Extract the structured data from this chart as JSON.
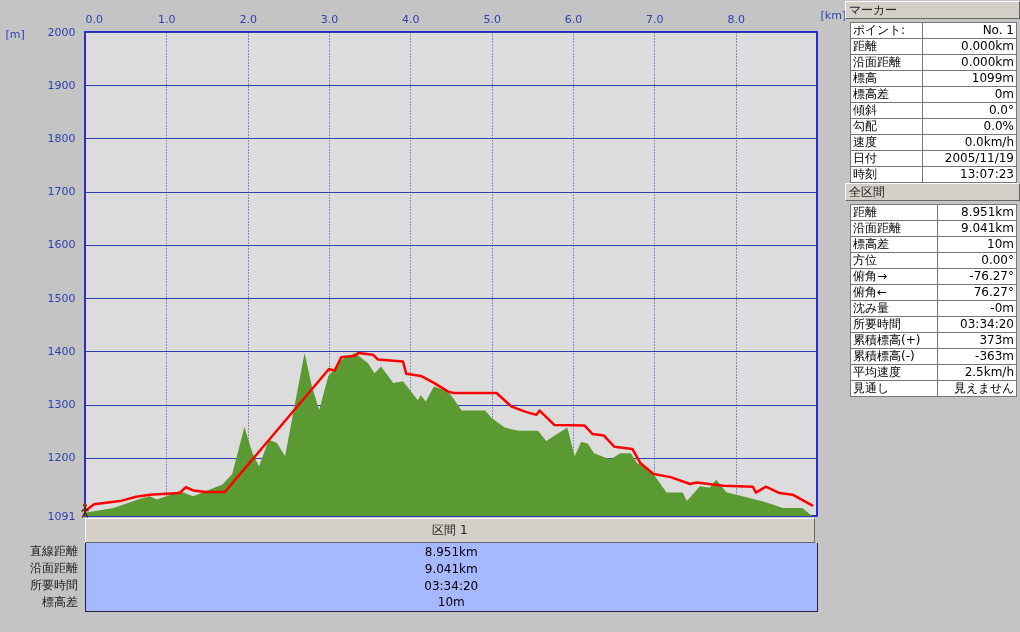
{
  "chart_data": [
    {
      "type": "line",
      "xlabel": "[km]",
      "ylabel": "[m]",
      "xlim": [
        0,
        9.0
      ],
      "ylim": [
        1091,
        2000
      ],
      "xticks": [
        {
          "value": 0,
          "label": "0.0"
        },
        {
          "value": 1,
          "label": "1.0"
        },
        {
          "value": 2,
          "label": "2.0"
        },
        {
          "value": 3,
          "label": "3.0"
        },
        {
          "value": 4,
          "label": "4.0"
        },
        {
          "value": 5,
          "label": "5.0"
        },
        {
          "value": 6,
          "label": "6.0"
        },
        {
          "value": 7,
          "label": "7.0"
        },
        {
          "value": 8,
          "label": "8.0"
        }
      ],
      "yticks": [
        1091,
        1200,
        1300,
        1400,
        1500,
        1600,
        1700,
        1800,
        1900,
        2000
      ],
      "grid": true,
      "series": [
        {
          "type": "area",
          "color": "#5b9a33",
          "x": [
            0,
            0.35,
            0.67,
            0.8,
            0.88,
            1.0,
            1.16,
            1.33,
            1.49,
            1.69,
            1.81,
            1.96,
            2.06,
            2.14,
            2.26,
            2.36,
            2.46,
            2.59,
            2.7,
            2.79,
            2.88,
            2.99,
            3.15,
            3.32,
            3.48,
            3.56,
            3.64,
            3.79,
            3.91,
            4.09,
            4.13,
            4.19,
            4.29,
            4.46,
            4.51,
            4.63,
            4.92,
            5.0,
            5.16,
            5.33,
            5.57,
            5.67,
            5.93,
            6.02,
            6.1,
            6.18,
            6.26,
            6.46,
            6.58,
            6.71,
            6.79,
            6.95,
            7.15,
            7.35,
            7.4,
            7.56,
            7.68,
            7.76,
            7.89,
            8.01,
            8.17,
            8.41,
            8.58,
            8.82,
            8.94
          ],
          "values": [
            1097,
            1106,
            1123,
            1128,
            1122,
            1128,
            1138,
            1128,
            1138,
            1150,
            1170,
            1258,
            1209,
            1184,
            1234,
            1228,
            1203,
            1309,
            1397,
            1334,
            1290,
            1353,
            1384,
            1397,
            1378,
            1359,
            1372,
            1341,
            1344,
            1309,
            1318,
            1306,
            1334,
            1325,
            1316,
            1289,
            1289,
            1275,
            1257,
            1251,
            1251,
            1232,
            1257,
            1203,
            1230,
            1227,
            1209,
            1197,
            1209,
            1209,
            1190,
            1178,
            1135,
            1135,
            1119,
            1147,
            1144,
            1159,
            1135,
            1131,
            1125,
            1115,
            1106,
            1106,
            1091
          ]
        },
        {
          "type": "line",
          "color": "#ff0000",
          "x": [
            0,
            0.11,
            0.43,
            0.63,
            0.8,
            1.16,
            1.24,
            1.33,
            1.49,
            1.72,
            3.0,
            3.07,
            3.15,
            3.32,
            3.36,
            3.54,
            3.6,
            3.91,
            3.95,
            4.13,
            4.29,
            4.46,
            4.53,
            5.06,
            5.24,
            5.41,
            5.55,
            5.59,
            5.77,
            6.14,
            6.24,
            6.38,
            6.51,
            6.73,
            6.83,
            6.99,
            7.2,
            7.44,
            7.52,
            7.85,
            8.21,
            8.25,
            8.37,
            8.54,
            8.7,
            8.94
          ],
          "values": [
            1100,
            1113,
            1119,
            1127,
            1131,
            1134,
            1145,
            1139,
            1136,
            1136,
            1367,
            1364,
            1389,
            1392,
            1397,
            1394,
            1385,
            1381,
            1358,
            1354,
            1341,
            1325,
            1322,
            1322,
            1297,
            1287,
            1281,
            1289,
            1262,
            1261,
            1245,
            1242,
            1221,
            1217,
            1190,
            1170,
            1164,
            1151,
            1154,
            1148,
            1146,
            1135,
            1146,
            1134,
            1131,
            1111
          ]
        }
      ]
    },
    {
      "type": "other",
      "title": "マーカー",
      "annotations": [
        "ポイント:",
        "No. 1",
        "距離",
        "0.000km",
        "沿面距離",
        "0.000km",
        "標高",
        "1099m",
        "標高差",
        "0m",
        "傾斜",
        "0.0°",
        "勾配",
        "0.0%",
        "速度",
        "0.0km/h",
        "日付",
        "2005/11/19",
        "時刻",
        "13:07:23"
      ]
    },
    {
      "type": "other",
      "title": "全区間",
      "annotations": [
        "距離",
        "8.951km",
        "沿面距離",
        "9.041km",
        "標高差",
        "10m",
        "方位",
        "0.00°",
        "俯角→",
        "-76.27°",
        "俯角←",
        "76.27°",
        "沈み量",
        "-0m",
        "所要時間",
        "03:34:20",
        "累積標高(+)",
        "373m",
        "累積標高(-)",
        "-363m",
        "平均速度",
        "2.5km/h",
        "見通し",
        "見えません"
      ]
    },
    {
      "type": "other",
      "title": "区間 1",
      "annotations": [
        "直線距離",
        "8.951km",
        "沿面距離",
        "9.041km",
        "所要時間",
        "03:34:20",
        "標高差",
        "10m"
      ]
    }
  ]
}
